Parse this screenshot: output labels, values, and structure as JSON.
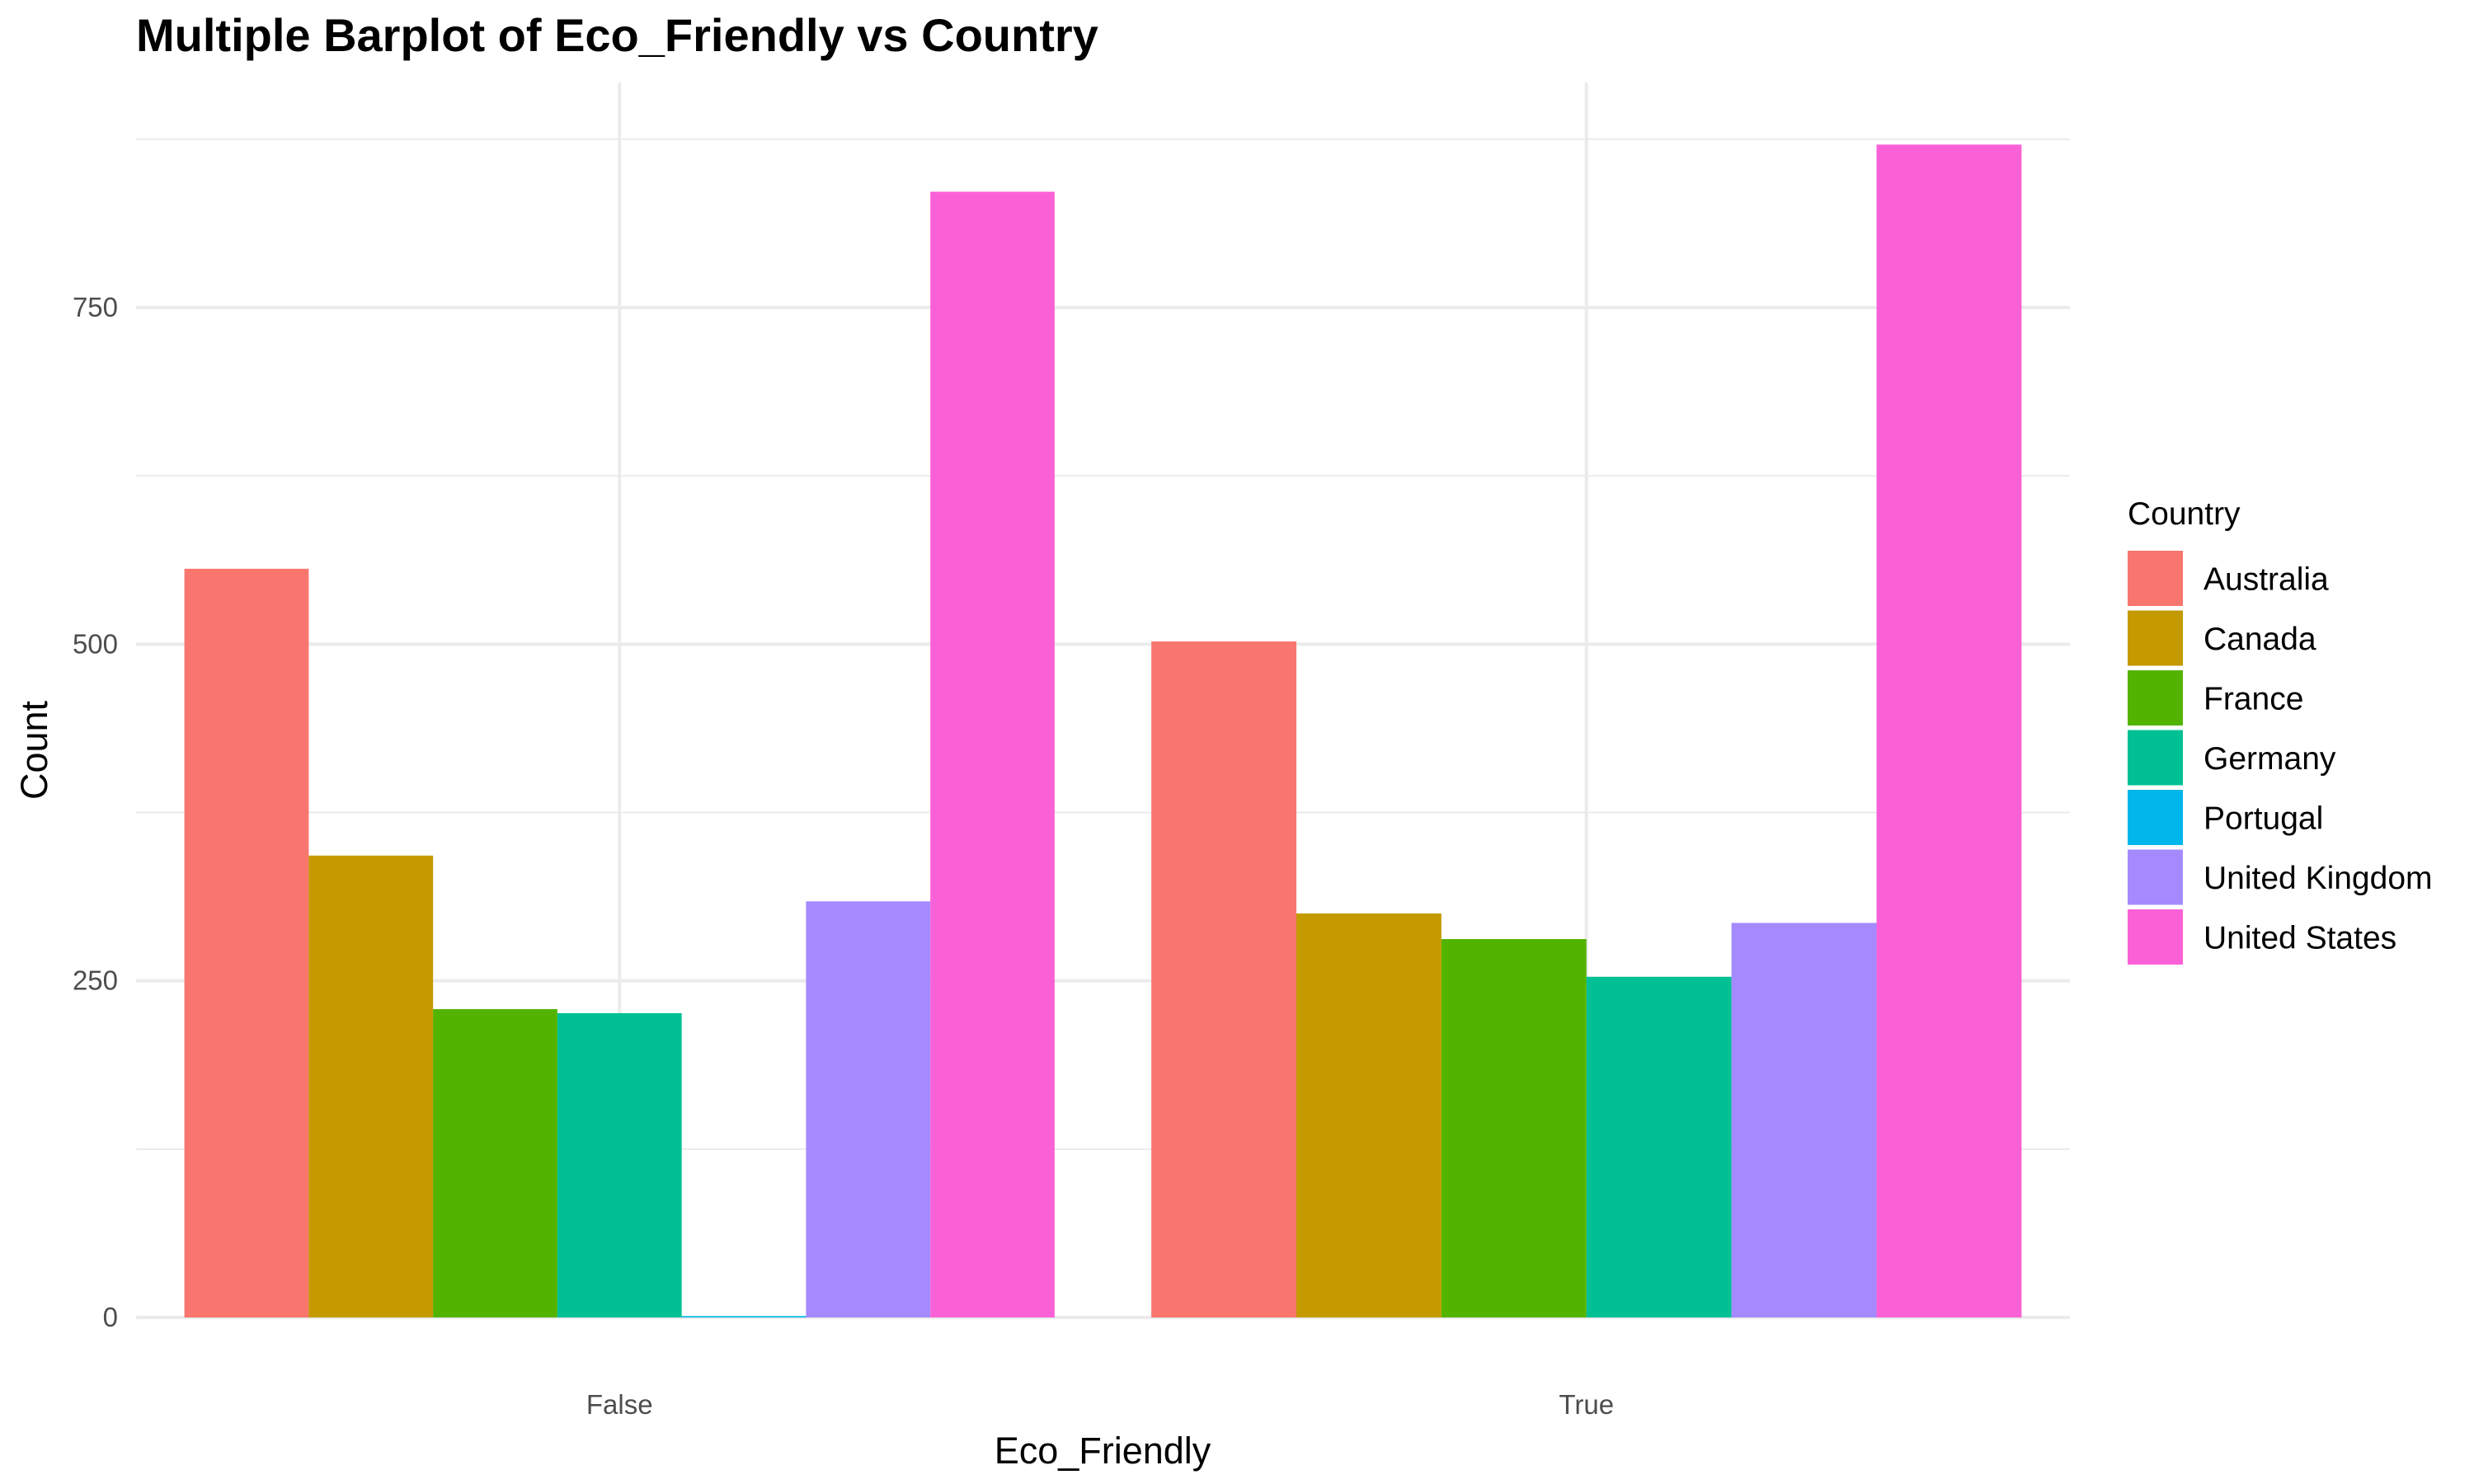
{
  "chart_data": {
    "type": "bar",
    "title": "Multiple Barplot of Eco_Friendly vs Country",
    "xlabel": "Eco_Friendly",
    "ylabel": "Count",
    "categories": [
      "False",
      "True"
    ],
    "ylim": [
      0,
      920
    ],
    "yticks": [
      0,
      250,
      500,
      750
    ],
    "grid": true,
    "legend_title": "Country",
    "legend_position": "right",
    "series": [
      {
        "name": "Australia",
        "color": "#F8766D",
        "values": [
          556,
          502
        ]
      },
      {
        "name": "Canada",
        "color": "#C49A00",
        "values": [
          343,
          300
        ]
      },
      {
        "name": "France",
        "color": "#53B400",
        "values": [
          229,
          281
        ]
      },
      {
        "name": "Germany",
        "color": "#00C094",
        "values": [
          226,
          253
        ]
      },
      {
        "name": "Portugal",
        "color": "#00B6EB",
        "values": [
          1,
          null
        ]
      },
      {
        "name": "United Kingdom",
        "color": "#A58AFF",
        "values": [
          309,
          293
        ]
      },
      {
        "name": "United States",
        "color": "#FB61D7",
        "values": [
          836,
          871
        ]
      }
    ]
  }
}
